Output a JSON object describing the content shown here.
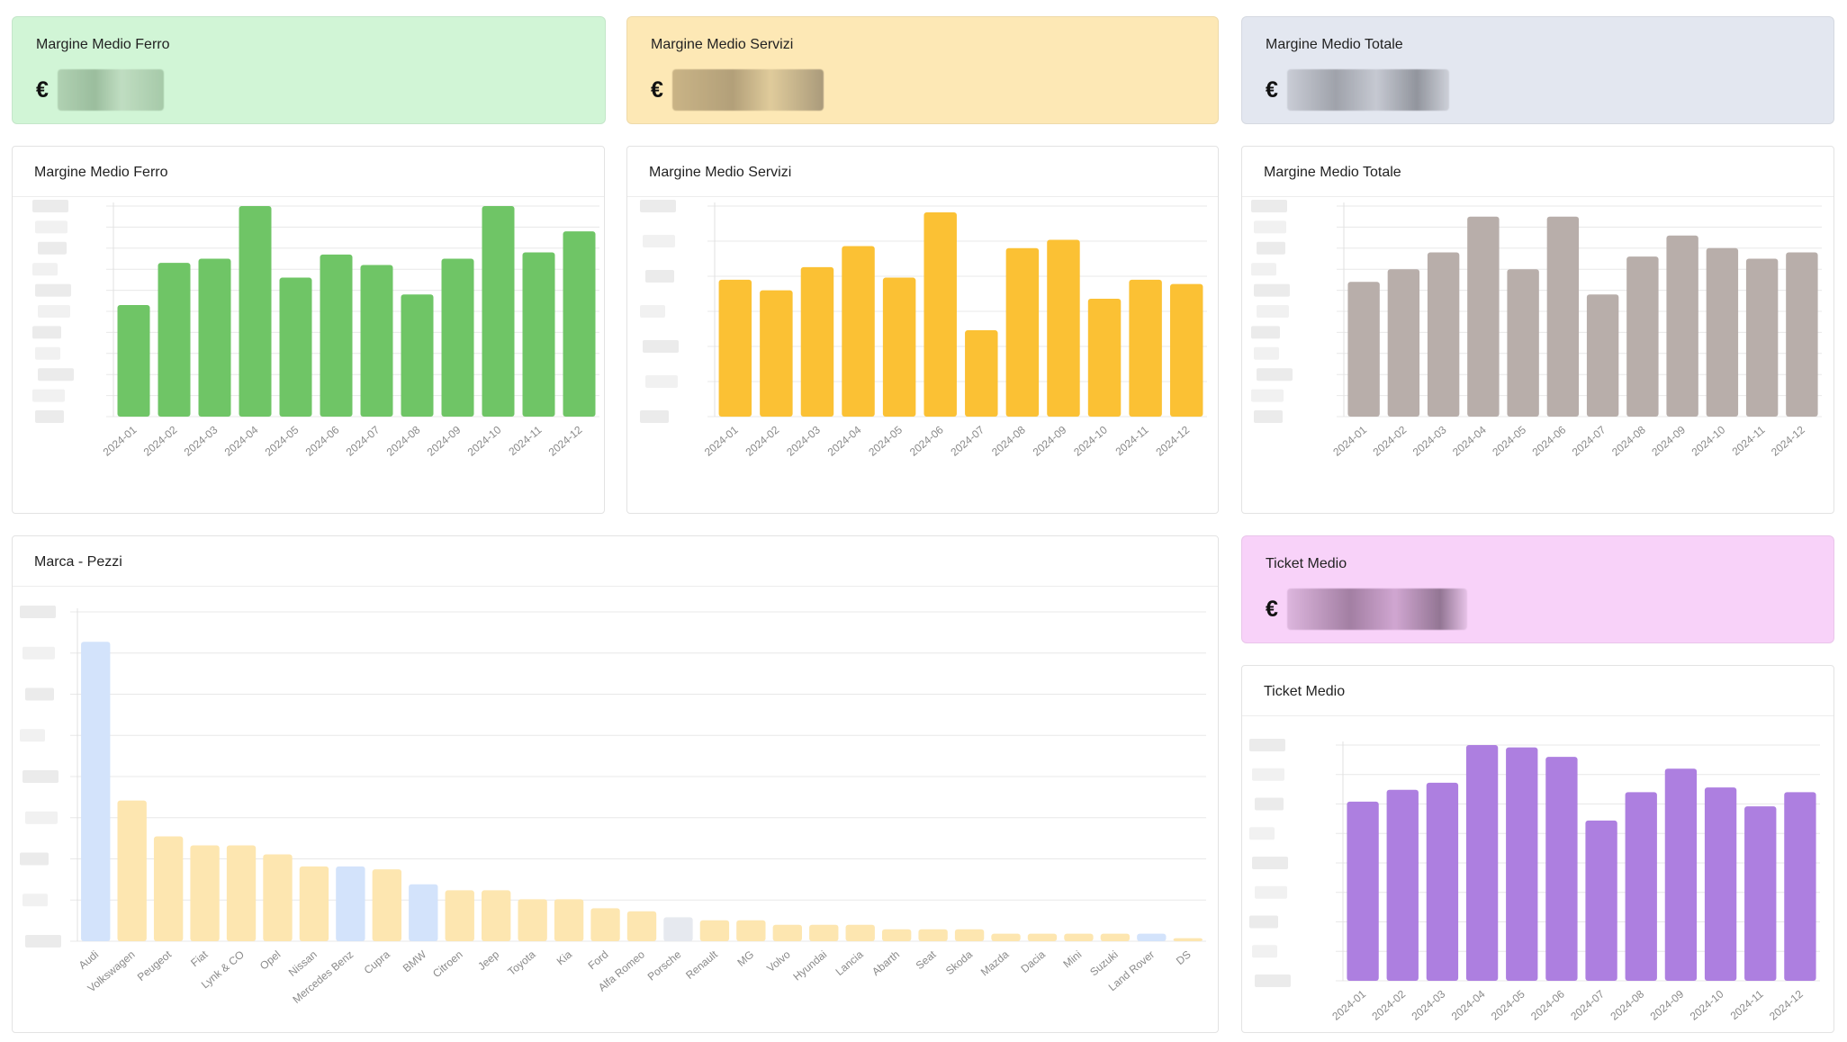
{
  "colors": {
    "ferro_card": "#d1f5d6",
    "servizi_card": "#fde8b5",
    "totale_card": "#e3e7f0",
    "ticket_card": "#f8d2f9",
    "green": "#6fc566",
    "yellow": "#fbc134",
    "taupe": "#b8aeaa",
    "purple": "#ad7fe0",
    "brand_yellow": "#fde6b0",
    "brand_blue": "#d3e3fb",
    "brand_gray": "#e6e9ef"
  },
  "kpis": [
    {
      "id": "ferro",
      "label": "Margine Medio Ferro",
      "currency": "€"
    },
    {
      "id": "servizi",
      "label": "Margine Medio Servizi",
      "currency": "€"
    },
    {
      "id": "totale",
      "label": "Margine Medio Totale",
      "currency": "€"
    },
    {
      "id": "ticket",
      "label": "Ticket Medio",
      "currency": "€"
    }
  ],
  "charts": {
    "ferro": {
      "title": "Margine Medio Ferro"
    },
    "servizi": {
      "title": "Margine Medio Servizi"
    },
    "totale": {
      "title": "Margine Medio Totale"
    },
    "marca": {
      "title": "Marca - Pezzi"
    },
    "ticket": {
      "title": "Ticket Medio"
    }
  },
  "chart_data": [
    {
      "id": "ferro",
      "type": "bar",
      "title": "Margine Medio Ferro",
      "categories": [
        "2024-01",
        "2024-02",
        "2024-03",
        "2024-04",
        "2024-05",
        "2024-06",
        "2024-07",
        "2024-08",
        "2024-09",
        "2024-10",
        "2024-11",
        "2024-12"
      ],
      "values": [
        53,
        73,
        75,
        100,
        66,
        77,
        72,
        58,
        75,
        100,
        78,
        88
      ],
      "ylim": [
        0,
        100
      ],
      "color": "#6fc566",
      "grid": true
    },
    {
      "id": "servizi",
      "type": "bar",
      "title": "Margine Medio Servizi",
      "categories": [
        "2024-01",
        "2024-02",
        "2024-03",
        "2024-04",
        "2024-05",
        "2024-06",
        "2024-07",
        "2024-08",
        "2024-09",
        "2024-10",
        "2024-11",
        "2024-12"
      ],
      "values": [
        65,
        60,
        71,
        81,
        66,
        97,
        41,
        80,
        84,
        56,
        65,
        63
      ],
      "ylim": [
        0,
        100
      ],
      "color": "#fbc134",
      "grid": true
    },
    {
      "id": "totale",
      "type": "bar",
      "title": "Margine Medio Totale",
      "categories": [
        "2024-01",
        "2024-02",
        "2024-03",
        "2024-04",
        "2024-05",
        "2024-06",
        "2024-07",
        "2024-08",
        "2024-09",
        "2024-10",
        "2024-11",
        "2024-12"
      ],
      "values": [
        64,
        70,
        78,
        95,
        70,
        95,
        58,
        76,
        86,
        80,
        75,
        78
      ],
      "ylim": [
        0,
        100
      ],
      "color": "#b8aeaa",
      "grid": true
    },
    {
      "id": "marca",
      "type": "bar",
      "title": "Marca - Pezzi",
      "categories": [
        "Audi",
        "Volkswagen",
        "Peugeot",
        "Fiat",
        "Lynk & CO",
        "Opel",
        "Nissan",
        "Mercedes Benz",
        "Cupra",
        "BMW",
        "Citroen",
        "Jeep",
        "Toyota",
        "Kia",
        "Ford",
        "Alfa Romeo",
        "Porsche",
        "Renault",
        "MG",
        "Volvo",
        "Hyundai",
        "Lancia",
        "Abarth",
        "Seat",
        "Skoda",
        "Mazda",
        "Dacia",
        "Mini",
        "Suzuki",
        "Land Rover",
        "DS"
      ],
      "values": [
        100,
        47,
        35,
        32,
        32,
        29,
        25,
        25,
        24,
        19,
        17,
        17,
        14,
        14,
        11,
        10,
        8,
        7,
        7,
        5.5,
        5.5,
        5.5,
        4,
        4,
        4,
        2.5,
        2.5,
        2.5,
        2.5,
        2.5,
        1
      ],
      "bar_colors": [
        "blue",
        "yellow",
        "yellow",
        "yellow",
        "yellow",
        "yellow",
        "yellow",
        "blue",
        "yellow",
        "blue",
        "yellow",
        "yellow",
        "yellow",
        "yellow",
        "yellow",
        "yellow",
        "gray",
        "yellow",
        "yellow",
        "yellow",
        "yellow",
        "yellow",
        "yellow",
        "yellow",
        "yellow",
        "yellow",
        "yellow",
        "yellow",
        "yellow",
        "blue",
        "yellow"
      ],
      "ylim": [
        0,
        110
      ],
      "grid": true
    },
    {
      "id": "ticket",
      "type": "bar",
      "title": "Ticket Medio",
      "categories": [
        "2024-01",
        "2024-02",
        "2024-03",
        "2024-04",
        "2024-05",
        "2024-06",
        "2024-07",
        "2024-08",
        "2024-09",
        "2024-10",
        "2024-11",
        "2024-12"
      ],
      "values": [
        76,
        81,
        84,
        100,
        99,
        95,
        68,
        80,
        90,
        82,
        74,
        80
      ],
      "ylim": [
        0,
        100
      ],
      "color": "#ad7fe0",
      "grid": true
    }
  ]
}
